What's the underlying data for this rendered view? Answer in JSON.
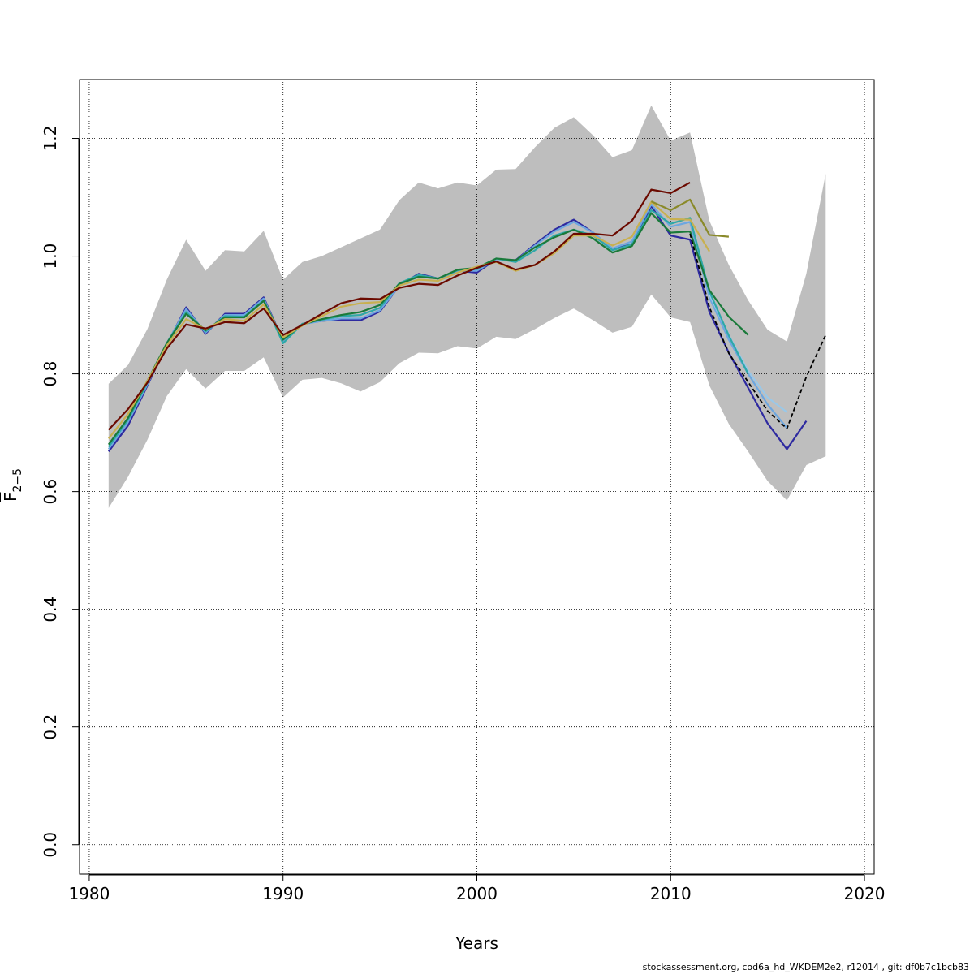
{
  "chart_data": {
    "type": "line",
    "title": "",
    "xlabel": "Years",
    "ylabel_main": "F",
    "ylabel_sub": "2−5",
    "xlim": [
      1979.5,
      2020.5
    ],
    "ylim": [
      -0.05,
      1.3
    ],
    "x_ticks": [
      1980,
      1990,
      2000,
      2010,
      2020
    ],
    "x_tick_labels": [
      "1980",
      "1990",
      "2000",
      "2010",
      "2020"
    ],
    "y_ticks": [
      0.0,
      0.2,
      0.4,
      0.6,
      0.8,
      1.0,
      1.2
    ],
    "y_tick_labels": [
      "0.0",
      "0.2",
      "0.4",
      "0.6",
      "0.8",
      "1.0",
      "1.2"
    ],
    "grid": true,
    "band_color": "#bebebe",
    "band": {
      "x": [
        1981,
        1982,
        1983,
        1984,
        1985,
        1986,
        1987,
        1988,
        1989,
        1990,
        1991,
        1992,
        1993,
        1994,
        1995,
        1996,
        1997,
        1998,
        1999,
        2000,
        2001,
        2002,
        2003,
        2004,
        2005,
        2006,
        2007,
        2008,
        2009,
        2010,
        2011,
        2012,
        2013,
        2014,
        2015,
        2016,
        2017,
        2018
      ],
      "upper": [
        0.783,
        0.815,
        0.876,
        0.96,
        1.028,
        0.975,
        1.01,
        1.008,
        1.043,
        0.96,
        0.99,
        1.0,
        1.015,
        1.03,
        1.045,
        1.095,
        1.125,
        1.115,
        1.125,
        1.12,
        1.147,
        1.148,
        1.185,
        1.218,
        1.236,
        1.205,
        1.168,
        1.18,
        1.256,
        1.196,
        1.21,
        1.06,
        0.985,
        0.925,
        0.875,
        0.855,
        0.97,
        1.14
      ],
      "lower": [
        0.572,
        0.625,
        0.688,
        0.762,
        0.808,
        0.775,
        0.805,
        0.805,
        0.828,
        0.76,
        0.79,
        0.793,
        0.784,
        0.77,
        0.786,
        0.818,
        0.836,
        0.835,
        0.847,
        0.843,
        0.863,
        0.859,
        0.876,
        0.895,
        0.911,
        0.891,
        0.87,
        0.88,
        0.935,
        0.896,
        0.888,
        0.78,
        0.715,
        0.668,
        0.618,
        0.585,
        0.645,
        0.66
      ]
    },
    "series": [
      {
        "color": "#2e2aa0",
        "x": [
          1981,
          1982,
          1983,
          1984,
          1985,
          1986,
          1987,
          1988,
          1989,
          1990,
          1991,
          1992,
          1993,
          1994,
          1995,
          1996,
          1997,
          1998,
          1999,
          2000,
          2001,
          2002,
          2003,
          2004,
          2005,
          2006,
          2007,
          2008,
          2009,
          2010,
          2011,
          2012,
          2013,
          2014,
          2015,
          2016,
          2017
        ],
        "values": [
          0.668,
          0.712,
          0.78,
          0.85,
          0.913,
          0.868,
          0.902,
          0.902,
          0.93,
          0.856,
          0.885,
          0.89,
          0.892,
          0.891,
          0.906,
          0.95,
          0.97,
          0.962,
          0.975,
          0.972,
          0.995,
          0.993,
          1.02,
          1.045,
          1.062,
          1.04,
          1.012,
          1.02,
          1.085,
          1.035,
          1.028,
          0.905,
          0.836,
          0.776,
          0.716,
          0.672,
          0.72
        ]
      },
      {
        "color": "#6ea7e0",
        "x": [
          1981,
          1982,
          1983,
          1984,
          1985,
          1986,
          1987,
          1988,
          1989,
          1990,
          1991,
          1992,
          1993,
          1994,
          1995,
          1996,
          1997,
          1998,
          1999,
          2000,
          2001,
          2002,
          2003,
          2004,
          2005,
          2006,
          2007,
          2008,
          2009,
          2010,
          2011,
          2012,
          2013,
          2014,
          2015,
          2016
        ],
        "values": [
          0.672,
          0.718,
          0.782,
          0.852,
          0.91,
          0.87,
          0.9,
          0.9,
          0.928,
          0.855,
          0.884,
          0.89,
          0.894,
          0.894,
          0.908,
          0.95,
          0.968,
          0.962,
          0.975,
          0.975,
          0.995,
          0.992,
          1.018,
          1.042,
          1.058,
          1.04,
          1.013,
          1.025,
          1.088,
          1.05,
          1.058,
          0.93,
          0.858,
          0.8,
          0.748,
          0.708
        ]
      },
      {
        "color": "#9ac8e8",
        "x": [
          2012,
          2013,
          2014,
          2015,
          2016
        ],
        "values": [
          0.935,
          0.866,
          0.805,
          0.76,
          0.735
        ]
      },
      {
        "color": "#2ea8a8",
        "x": [
          1981,
          1982,
          1983,
          1984,
          1985,
          1986,
          1987,
          1988,
          1989,
          1990,
          1991,
          1992,
          1993,
          1994,
          1995,
          1996,
          1997,
          1998,
          1999,
          2000,
          2001,
          2002,
          2003,
          2004,
          2005,
          2006,
          2007,
          2008,
          2009,
          2010,
          2011,
          2012,
          2013,
          2014
        ],
        "values": [
          0.676,
          0.722,
          0.785,
          0.852,
          0.905,
          0.872,
          0.898,
          0.897,
          0.925,
          0.852,
          0.885,
          0.892,
          0.898,
          0.9,
          0.912,
          0.954,
          0.968,
          0.962,
          0.976,
          0.978,
          0.996,
          0.99,
          1.01,
          1.035,
          1.045,
          1.035,
          1.01,
          1.02,
          1.078,
          1.055,
          1.065,
          0.94,
          0.865,
          0.8
        ]
      },
      {
        "color": "#1a7a3a",
        "x": [
          1981,
          1982,
          1983,
          1984,
          1985,
          1986,
          1987,
          1988,
          1989,
          1990,
          1991,
          1992,
          1993,
          1994,
          1995,
          1996,
          1997,
          1998,
          1999,
          2000,
          2001,
          2002,
          2003,
          2004,
          2005,
          2006,
          2007,
          2008,
          2009,
          2010,
          2011,
          2012,
          2013,
          2014
        ],
        "values": [
          0.68,
          0.725,
          0.788,
          0.852,
          0.902,
          0.874,
          0.896,
          0.896,
          0.924,
          0.858,
          0.884,
          0.893,
          0.9,
          0.905,
          0.917,
          0.953,
          0.965,
          0.962,
          0.977,
          0.98,
          0.996,
          0.993,
          1.015,
          1.032,
          1.045,
          1.03,
          1.006,
          1.017,
          1.073,
          1.04,
          1.042,
          0.942,
          0.897,
          0.866
        ]
      },
      {
        "color": "#c8b050",
        "x": [
          1981,
          1982,
          1983,
          1984,
          1985,
          1986,
          1987,
          1988,
          1989,
          1990,
          1991,
          1992,
          1993,
          1994,
          1995,
          1996,
          1997,
          1998,
          1999,
          2000,
          2001,
          2002,
          2003,
          2004,
          2005,
          2006,
          2007,
          2008,
          2009,
          2010,
          2011,
          2012
        ],
        "values": [
          0.69,
          0.732,
          0.788,
          0.848,
          0.893,
          0.876,
          0.893,
          0.89,
          0.918,
          0.862,
          0.882,
          0.898,
          0.914,
          0.92,
          0.922,
          0.95,
          0.96,
          0.958,
          0.972,
          0.982,
          0.99,
          0.975,
          0.985,
          1.005,
          1.035,
          1.035,
          1.018,
          1.033,
          1.092,
          1.063,
          1.062,
          1.008
        ]
      },
      {
        "color": "#8a8a2a",
        "x": [
          2009,
          2010,
          2011,
          2012,
          2013
        ],
        "values": [
          1.093,
          1.078,
          1.096,
          1.036,
          1.033
        ]
      },
      {
        "color": "#6b0a00",
        "x": [
          1981,
          1982,
          1983,
          1984,
          1985,
          1986,
          1987,
          1988,
          1989,
          1990,
          1991,
          1992,
          1993,
          1994,
          1995,
          1996,
          1997,
          1998,
          1999,
          2000,
          2001,
          2002,
          2003,
          2004,
          2005,
          2006,
          2007,
          2008,
          2009,
          2010,
          2011
        ],
        "values": [
          0.705,
          0.74,
          0.785,
          0.843,
          0.884,
          0.877,
          0.888,
          0.886,
          0.911,
          0.866,
          0.883,
          0.902,
          0.92,
          0.928,
          0.927,
          0.946,
          0.953,
          0.951,
          0.967,
          0.98,
          0.991,
          0.977,
          0.985,
          1.008,
          1.038,
          1.038,
          1.035,
          1.06,
          1.113,
          1.107,
          1.125
        ]
      },
      {
        "color": "#000000",
        "dashed": true,
        "x": [
          2011,
          2012,
          2013,
          2014,
          2015,
          2016,
          2017,
          2018
        ],
        "values": [
          1.038,
          0.913,
          0.835,
          0.786,
          0.737,
          0.707,
          0.795,
          0.866
        ]
      }
    ]
  },
  "footer": {
    "text": "stockassessment.org, cod6a_hd_WKDEM2e2, r12014 , git: df0b7c1bcb83"
  }
}
